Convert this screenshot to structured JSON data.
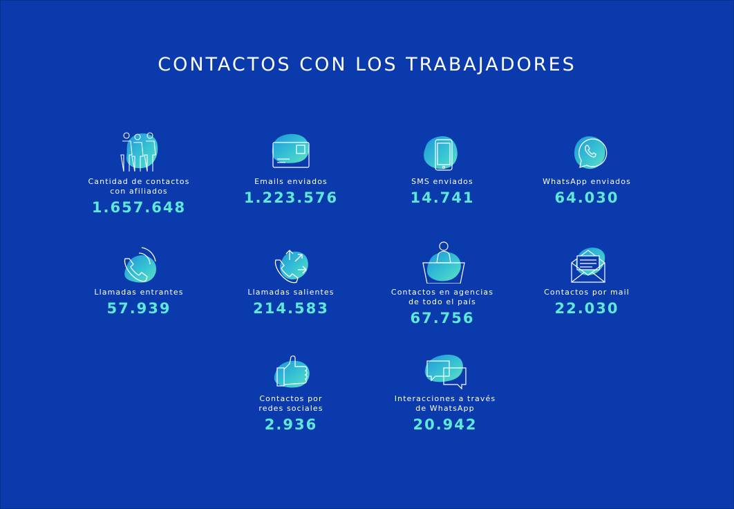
{
  "title": "CONTACTOS CON LOS TRABAJADORES",
  "colors": {
    "background": "#0a3aab",
    "accent": "#5ee8d8",
    "blob_start": "#1fa8e0",
    "blob_end": "#5ef0c8"
  },
  "stats": [
    {
      "icon": "people-icon",
      "label": "Cantidad de contactos\ncon afiliados",
      "value": "1.657.648"
    },
    {
      "icon": "envelope-card-icon",
      "label": "Emails enviados",
      "value": "1.223.576"
    },
    {
      "icon": "smartphone-icon",
      "label": "SMS enviados",
      "value": "14.741"
    },
    {
      "icon": "whatsapp-icon",
      "label": "WhatsApp enviados",
      "value": "64.030"
    },
    {
      "icon": "incoming-call-icon",
      "label": "Llamadas entrantes",
      "value": "57.939"
    },
    {
      "icon": "outgoing-call-icon",
      "label": "Llamadas salientes",
      "value": "214.583"
    },
    {
      "icon": "agency-person-icon",
      "label": "Contactos en agencias\nde todo el país",
      "value": "67.756"
    },
    {
      "icon": "mail-open-icon",
      "label": "Contactos por mail",
      "value": "22.030"
    },
    {
      "icon": "thumbs-up-icon",
      "label": "Contactos por\nredes sociales",
      "value": "2.936"
    },
    {
      "icon": "chat-bubbles-icon",
      "label": "Interacciones a través\nde WhatsApp",
      "value": "20.942"
    }
  ]
}
